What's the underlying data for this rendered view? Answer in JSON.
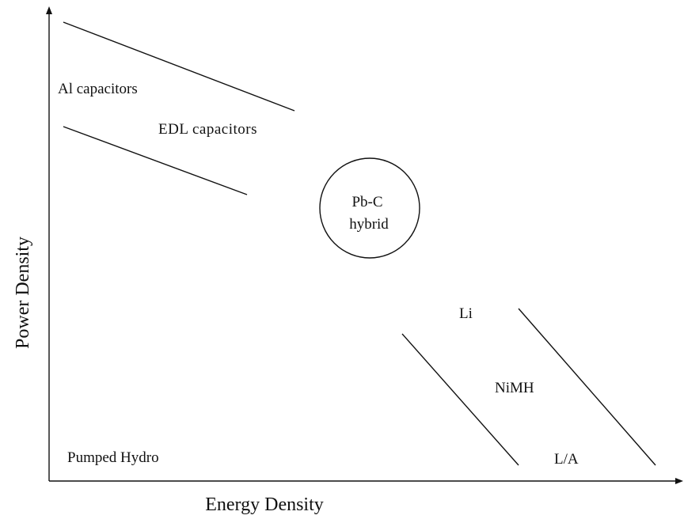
{
  "axes": {
    "x_label": "Energy Density",
    "y_label": "Power Density"
  },
  "labels": {
    "al_capacitors": "Al capacitors",
    "edl_capacitors": "EDL capacitors",
    "pbc_line1": "Pb-C",
    "pbc_line2": "hybrid",
    "li": "Li",
    "nimh": "NiMH",
    "la": "L/A",
    "pumped_hydro": "Pumped Hydro"
  }
}
